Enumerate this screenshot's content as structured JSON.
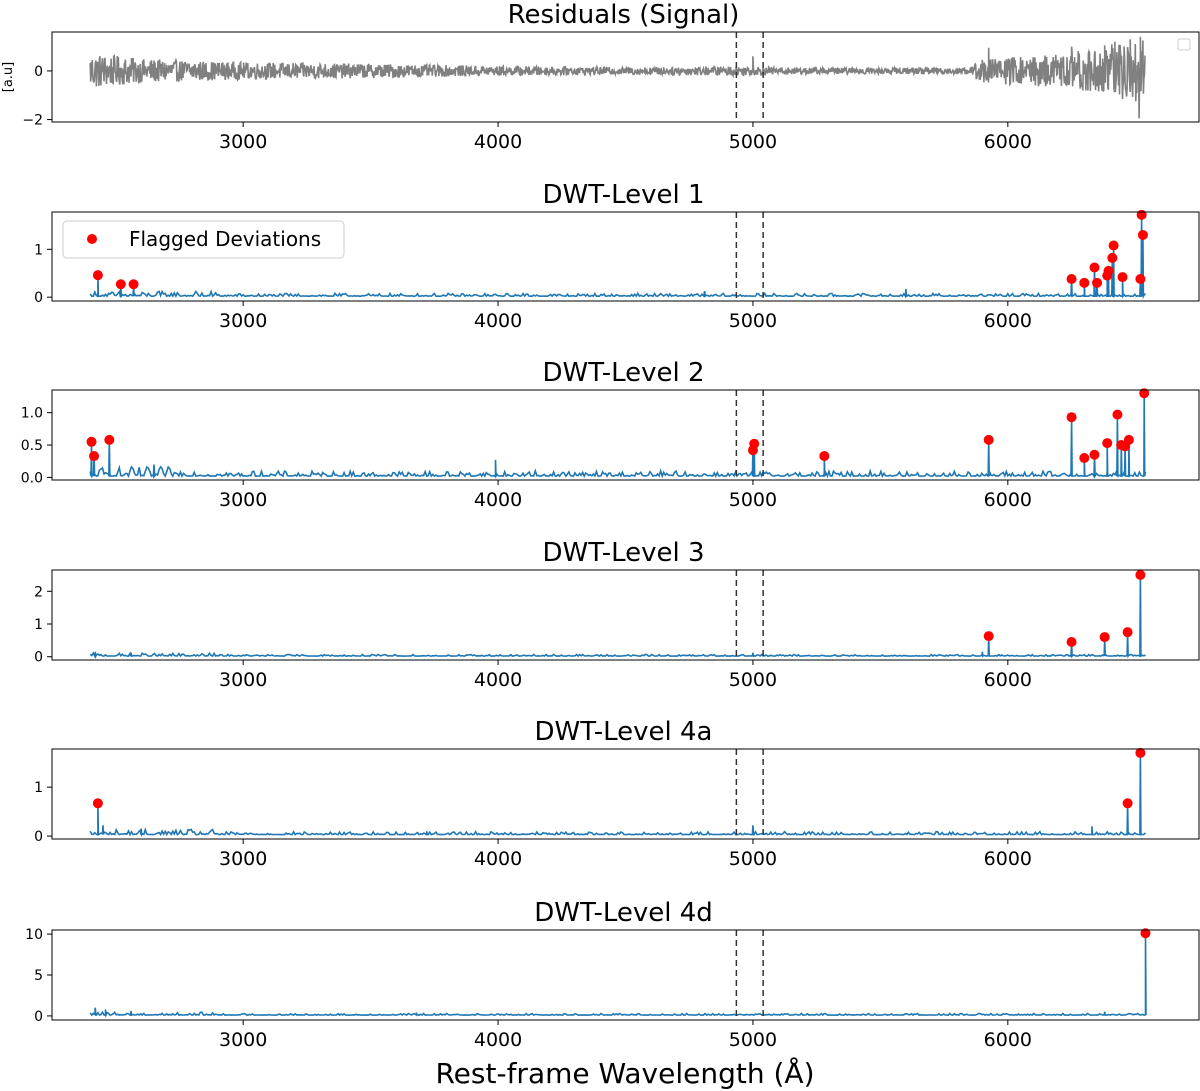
{
  "figure": {
    "xlabel": "Rest-frame Wavelength (Å)",
    "colors": {
      "residual": "#808080",
      "dwt": "#1f77b4",
      "flag": "#ff0000",
      "vline": "#333333"
    }
  },
  "chart_data": [
    {
      "type": "line",
      "title": "Residuals (Signal)",
      "ylabel": "[a.u]",
      "xlim": [
        2250,
        6750
      ],
      "ylim": [
        -2.1,
        1.6
      ],
      "xticks": [
        3000,
        4000,
        5000,
        6000
      ],
      "xtick_labels": [
        "3000",
        "4000",
        "5000",
        "6000"
      ],
      "yticks": [
        -2,
        0
      ],
      "ytick_labels": [
        "−2",
        "0"
      ],
      "vlines": [
        4935,
        5040
      ],
      "legend": {
        "position": "upper right",
        "entries": []
      },
      "series": [
        {
          "name": "Residuals",
          "color": "#808080",
          "x_range": [
            2400,
            6540
          ],
          "envelope": [
            [
              2400,
              0.75
            ],
            [
              2600,
              0.5
            ],
            [
              3000,
              0.35
            ],
            [
              3500,
              0.3
            ],
            [
              4000,
              0.2
            ],
            [
              4500,
              0.15
            ],
            [
              4900,
              0.2
            ],
            [
              5100,
              0.15
            ],
            [
              5500,
              0.12
            ],
            [
              5850,
              0.15
            ],
            [
              5900,
              0.5
            ],
            [
              6200,
              0.7
            ],
            [
              6350,
              1.0
            ],
            [
              6450,
              1.2
            ],
            [
              6540,
              1.4
            ]
          ],
          "spikes": [
            [
              5925,
              0.95
            ],
            [
              5000,
              0.6
            ],
            [
              6250,
              1.0
            ],
            [
              6380,
              1.05
            ],
            [
              6420,
              1.2
            ],
            [
              6480,
              1.3
            ],
            [
              6515,
              -1.95
            ],
            [
              6520,
              1.4
            ]
          ]
        }
      ]
    },
    {
      "type": "line",
      "title": "DWT-Level 1",
      "xlim": [
        2250,
        6750
      ],
      "ylim": [
        -0.08,
        1.78
      ],
      "xticks": [
        3000,
        4000,
        5000,
        6000
      ],
      "xtick_labels": [
        "3000",
        "4000",
        "5000",
        "6000"
      ],
      "yticks": [
        0,
        1
      ],
      "ytick_labels": [
        "0",
        "1"
      ],
      "vlines": [
        4935,
        5040
      ],
      "legend": {
        "position": "upper left",
        "entries": [
          {
            "label": "Flagged Deviations",
            "color": "#ff0000"
          }
        ]
      },
      "series": [
        {
          "name": "DWT coefficient",
          "color": "#1f77b4",
          "x_range": [
            2400,
            6540
          ],
          "base": 0.02,
          "noise": 0.06,
          "peaks": [
            [
              2430,
              0.46
            ],
            [
              2520,
              0.27
            ],
            [
              2570,
              0.27
            ],
            [
              4810,
              0.13
            ],
            [
              5600,
              0.17
            ],
            [
              6250,
              0.38
            ],
            [
              6300,
              0.3
            ],
            [
              6340,
              0.62
            ],
            [
              6350,
              0.3
            ],
            [
              6390,
              0.45
            ],
            [
              6395,
              0.55
            ],
            [
              6410,
              0.82
            ],
            [
              6415,
              1.08
            ],
            [
              6450,
              0.42
            ],
            [
              6520,
              0.38
            ],
            [
              6525,
              1.72
            ],
            [
              6530,
              1.3
            ]
          ]
        }
      ],
      "flagged": {
        "x": [
          2430,
          2520,
          2570,
          6250,
          6300,
          6340,
          6350,
          6390,
          6395,
          6410,
          6415,
          6450,
          6520,
          6525,
          6530
        ],
        "y": [
          0.46,
          0.27,
          0.27,
          0.38,
          0.3,
          0.62,
          0.3,
          0.45,
          0.55,
          0.82,
          1.08,
          0.42,
          0.38,
          1.72,
          1.3
        ]
      }
    },
    {
      "type": "line",
      "title": "DWT-Level 2",
      "xlim": [
        2250,
        6750
      ],
      "ylim": [
        -0.04,
        1.35
      ],
      "xticks": [
        3000,
        4000,
        5000,
        6000
      ],
      "xtick_labels": [
        "3000",
        "4000",
        "5000",
        "6000"
      ],
      "yticks": [
        0.0,
        0.5,
        1.0
      ],
      "ytick_labels": [
        "0.0",
        "0.5",
        "1.0"
      ],
      "vlines": [
        4935,
        5040
      ],
      "legend": {
        "position": "none",
        "entries": []
      },
      "series": [
        {
          "name": "DWT coefficient",
          "color": "#1f77b4",
          "x_range": [
            2400,
            6540
          ],
          "base": 0.02,
          "noise": 0.08,
          "peaks": [
            [
              2405,
              0.55
            ],
            [
              2415,
              0.33
            ],
            [
              2475,
              0.58
            ],
            [
              2650,
              0.2
            ],
            [
              3990,
              0.27
            ],
            [
              5000,
              0.42
            ],
            [
              5005,
              0.52
            ],
            [
              5280,
              0.33
            ],
            [
              5925,
              0.58
            ],
            [
              6250,
              0.93
            ],
            [
              6300,
              0.3
            ],
            [
              6340,
              0.35
            ],
            [
              6390,
              0.53
            ],
            [
              6430,
              0.97
            ],
            [
              6445,
              0.5
            ],
            [
              6460,
              0.48
            ],
            [
              6475,
              0.58
            ],
            [
              6535,
              1.3
            ]
          ]
        }
      ],
      "flagged": {
        "x": [
          2405,
          2415,
          2475,
          5000,
          5005,
          5280,
          5925,
          6250,
          6300,
          6340,
          6390,
          6430,
          6445,
          6460,
          6475,
          6535
        ],
        "y": [
          0.55,
          0.33,
          0.58,
          0.42,
          0.52,
          0.33,
          0.58,
          0.93,
          0.3,
          0.35,
          0.53,
          0.97,
          0.5,
          0.48,
          0.58,
          1.3
        ]
      }
    },
    {
      "type": "line",
      "title": "DWT-Level 3",
      "xlim": [
        2250,
        6750
      ],
      "ylim": [
        -0.1,
        2.65
      ],
      "xticks": [
        3000,
        4000,
        5000,
        6000
      ],
      "xtick_labels": [
        "3000",
        "4000",
        "5000",
        "6000"
      ],
      "yticks": [
        0,
        1,
        2
      ],
      "ytick_labels": [
        "0",
        "1",
        "2"
      ],
      "vlines": [
        4935,
        5040
      ],
      "legend": {
        "position": "none",
        "entries": []
      },
      "series": [
        {
          "name": "DWT coefficient",
          "color": "#1f77b4",
          "x_range": [
            2400,
            6540
          ],
          "base": 0.02,
          "noise": 0.05,
          "peaks": [
            [
              2420,
              0.15
            ],
            [
              2560,
              0.12
            ],
            [
              5000,
              0.12
            ],
            [
              5900,
              0.15
            ],
            [
              5925,
              0.63
            ],
            [
              6250,
              0.45
            ],
            [
              6380,
              0.6
            ],
            [
              6470,
              0.75
            ],
            [
              6520,
              2.5
            ]
          ]
        }
      ],
      "flagged": {
        "x": [
          5925,
          6250,
          6380,
          6470,
          6520
        ],
        "y": [
          0.63,
          0.45,
          0.6,
          0.75,
          2.5
        ]
      }
    },
    {
      "type": "line",
      "title": "DWT-Level 4a",
      "xlim": [
        2250,
        6750
      ],
      "ylim": [
        -0.06,
        1.78
      ],
      "xticks": [
        3000,
        4000,
        5000,
        6000
      ],
      "xtick_labels": [
        "3000",
        "4000",
        "5000",
        "6000"
      ],
      "yticks": [
        0,
        1
      ],
      "ytick_labels": [
        "0",
        "1"
      ],
      "vlines": [
        4935,
        5040
      ],
      "legend": {
        "position": "none",
        "entries": []
      },
      "series": [
        {
          "name": "DWT coefficient",
          "color": "#1f77b4",
          "x_range": [
            2400,
            6540
          ],
          "base": 0.03,
          "noise": 0.06,
          "peaks": [
            [
              2430,
              0.67
            ],
            [
              2450,
              0.22
            ],
            [
              2600,
              0.15
            ],
            [
              3720,
              0.1
            ],
            [
              5000,
              0.22
            ],
            [
              6330,
              0.2
            ],
            [
              6470,
              0.67
            ],
            [
              6520,
              1.7
            ]
          ]
        }
      ],
      "flagged": {
        "x": [
          2430,
          6470,
          6520
        ],
        "y": [
          0.67,
          0.67,
          1.7
        ]
      }
    },
    {
      "type": "line",
      "title": "DWT-Level 4d",
      "xlim": [
        2250,
        6750
      ],
      "ylim": [
        -0.5,
        10.5
      ],
      "xticks": [
        3000,
        4000,
        5000,
        6000
      ],
      "xtick_labels": [
        "3000",
        "4000",
        "5000",
        "6000"
      ],
      "yticks": [
        0,
        5,
        10
      ],
      "ytick_labels": [
        "0",
        "5",
        "10"
      ],
      "vlines": [
        4935,
        5040
      ],
      "legend": {
        "position": "none",
        "entries": []
      },
      "series": [
        {
          "name": "DWT coefficient",
          "color": "#1f77b4",
          "x_range": [
            2400,
            6540
          ],
          "base": 0.1,
          "noise": 0.2,
          "peaks": [
            [
              2420,
              1.0
            ],
            [
              2460,
              0.8
            ],
            [
              2560,
              0.6
            ],
            [
              3680,
              0.4
            ],
            [
              6380,
              0.5
            ],
            [
              6540,
              10.1
            ]
          ]
        }
      ],
      "flagged": {
        "x": [
          6540
        ],
        "y": [
          10.1
        ]
      }
    }
  ]
}
